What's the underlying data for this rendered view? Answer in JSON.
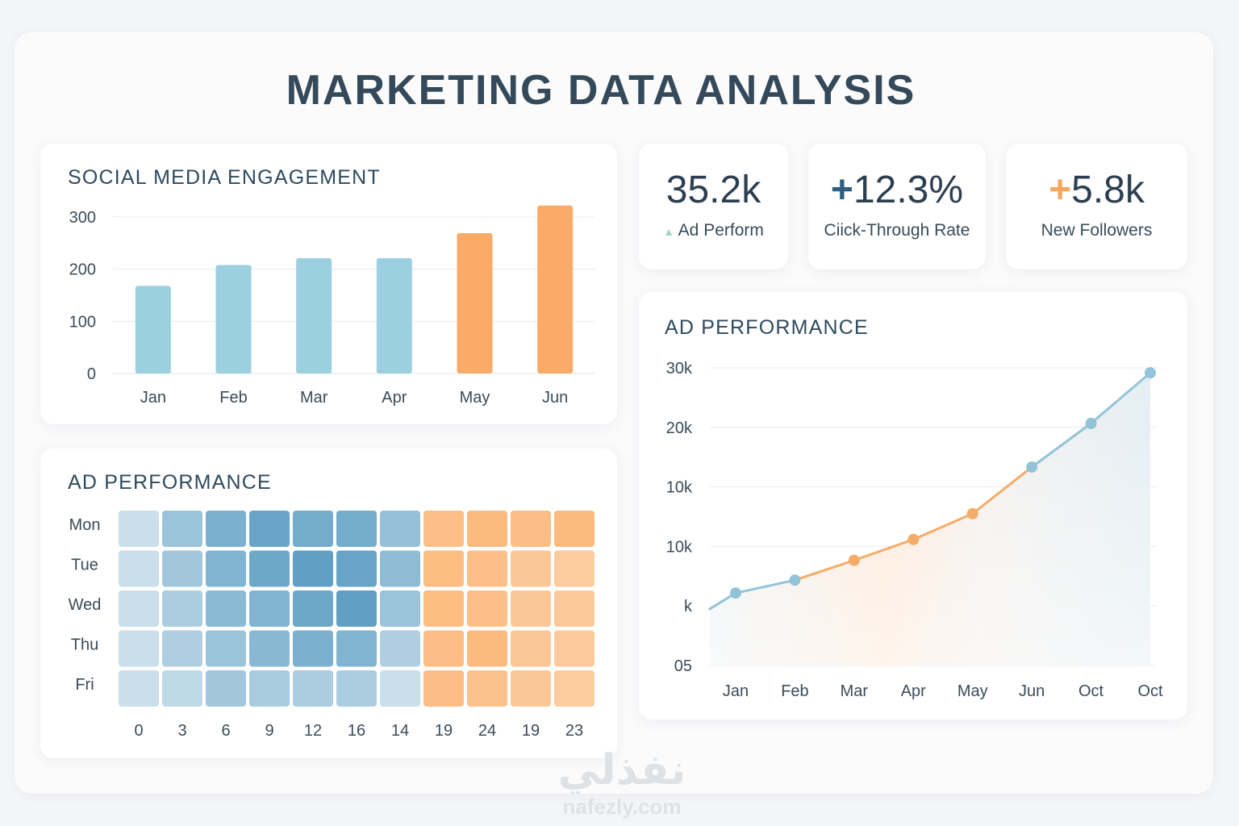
{
  "page": {
    "title": "MARKETING DATA ANALYSIS"
  },
  "colors": {
    "blue": "#9ccfe0",
    "orange": "#fbab67",
    "line_blue": "#93c3d8",
    "line_orange": "#f6ac68",
    "grid": "#e8ecef"
  },
  "kpis": [
    {
      "value": "35.2k",
      "label": "Ad Perform",
      "mark": "▲",
      "mark_icon": "triangle-up-icon",
      "mark_color": "#9fd6c2"
    },
    {
      "value": "12.3%",
      "label": "Ciick-Through Rate",
      "mark": "+",
      "mark_icon": "plus-icon",
      "mark_color": "#2e5e80"
    },
    {
      "value": "5.8k",
      "label": "New Followers",
      "mark": "+",
      "mark_icon": "plus-icon",
      "mark_color": "#f6a85f"
    }
  ],
  "watermark": {
    "arabic": "نفذلي",
    "latin": "nafezly.com"
  },
  "chart_data": [
    {
      "type": "bar",
      "title": "SOCIAL MEDIA ENGAGEMENT",
      "categories": [
        "Jan",
        "Feb",
        "Mar",
        "Apr",
        "May",
        "Jun"
      ],
      "values": [
        168,
        208,
        221,
        221,
        269,
        322
      ],
      "bar_colors": [
        "blue",
        "blue",
        "blue",
        "blue",
        "orange",
        "orange"
      ],
      "yticks": [
        "0",
        "100",
        "200",
        "300"
      ],
      "ylim": [
        0,
        300
      ],
      "grid": true
    },
    {
      "type": "heatmap",
      "title": "AD PERFORMANCE",
      "rows": [
        "Mon",
        "Tue",
        "Wed",
        "Thu",
        "Fri"
      ],
      "columns": [
        "0",
        "3",
        "6",
        "9",
        "12",
        "16",
        "14",
        "19",
        "24",
        "19",
        "23"
      ],
      "column_groups": [
        "blue",
        "blue",
        "blue",
        "blue",
        "blue",
        "blue",
        "blue",
        "orange",
        "orange",
        "orange",
        "orange"
      ],
      "values": [
        [
          0.15,
          0.5,
          0.75,
          0.9,
          0.8,
          0.8,
          0.55,
          0.7,
          0.8,
          0.72,
          0.78
        ],
        [
          0.15,
          0.45,
          0.7,
          0.85,
          0.95,
          0.9,
          0.6,
          0.75,
          0.7,
          0.55,
          0.45
        ],
        [
          0.15,
          0.38,
          0.62,
          0.7,
          0.85,
          0.95,
          0.5,
          0.75,
          0.7,
          0.55,
          0.5
        ],
        [
          0.15,
          0.35,
          0.5,
          0.65,
          0.75,
          0.7,
          0.35,
          0.72,
          0.78,
          0.55,
          0.48
        ],
        [
          0.15,
          0.22,
          0.45,
          0.4,
          0.38,
          0.38,
          0.15,
          0.72,
          0.65,
          0.55,
          0.45
        ]
      ]
    },
    {
      "type": "area",
      "title": "AD PERFORMANCE",
      "categories": [
        "Jan",
        "Feb",
        "Mar",
        "Apr",
        "May",
        "Jun",
        "Oct",
        "Oct"
      ],
      "values": [
        0.73,
        0.86,
        1.06,
        1.27,
        1.53,
        2.0,
        2.44,
        2.95
      ],
      "point_colors": [
        "blue",
        "blue",
        "orange",
        "orange",
        "orange",
        "blue",
        "blue",
        "blue"
      ],
      "yticks": [
        "05",
        "k",
        "10k",
        "10k",
        "20k",
        "30k"
      ],
      "ylim": [
        0,
        3
      ],
      "grid": true
    }
  ]
}
